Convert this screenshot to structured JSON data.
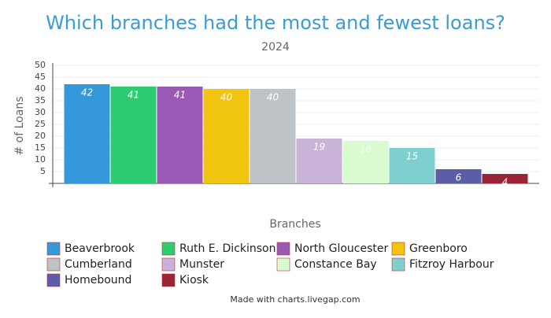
{
  "chart_data": {
    "type": "bar",
    "title": "Which branches had the most and fewest loans?",
    "subtitle": "2024",
    "x_label": "Branches",
    "y_label": "# of Loans",
    "categories": [
      "Beaverbrook",
      "Ruth E. Dickinson",
      "North Gloucester",
      "Greenboro",
      "Cumberland",
      "Munster",
      "Constance Bay",
      "Fitzroy Harbour",
      "Homebound",
      "Kiosk"
    ],
    "values": [
      42,
      41,
      41,
      40,
      40,
      19,
      18,
      15,
      6,
      4
    ],
    "colors": [
      "#3498db",
      "#2ecc71",
      "#9b59b6",
      "#f1c40f",
      "#bdc3c7",
      "#c9b3d9",
      "#d9fbd0",
      "#7fcfcf",
      "#5b5ea6",
      "#9b2335"
    ],
    "ylim": [
      0,
      50
    ],
    "yticks": [
      5,
      10,
      15,
      20,
      25,
      30,
      35,
      40,
      45,
      50
    ],
    "grid": true,
    "credit": "Made with charts.livegap.com"
  }
}
